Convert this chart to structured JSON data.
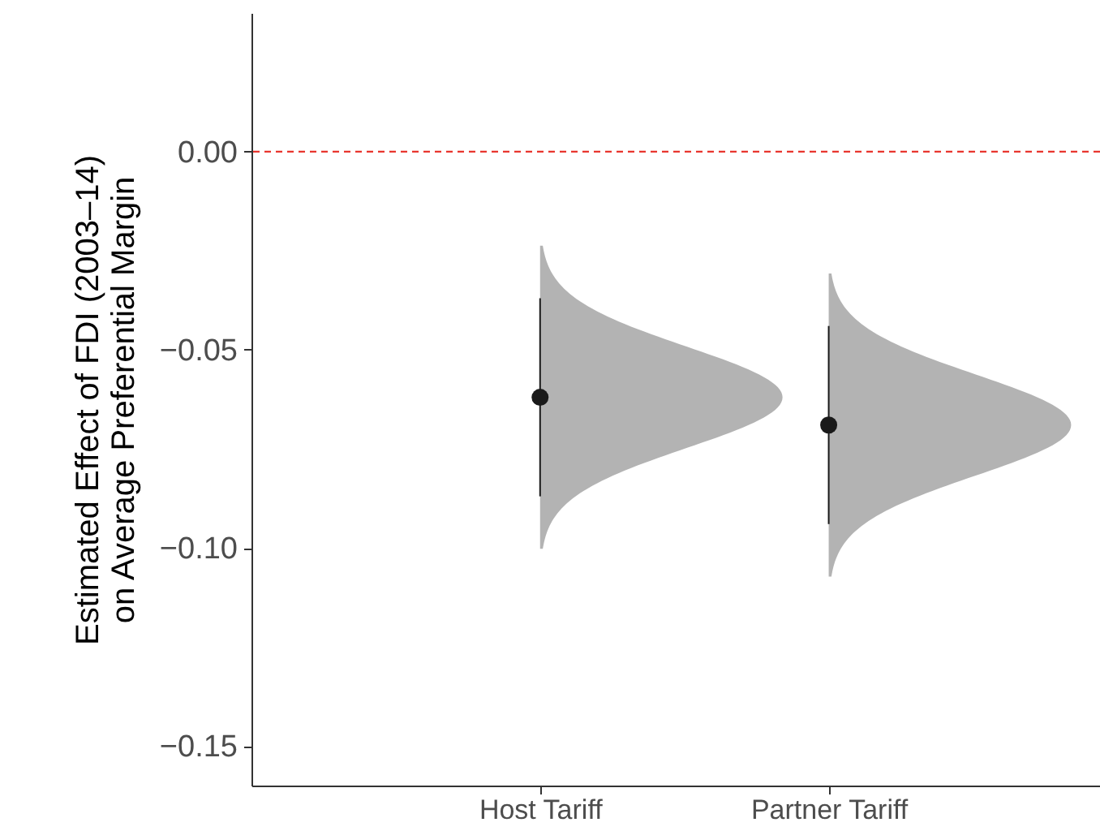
{
  "chart_data": {
    "type": "scatter",
    "ylabel": "Estimated Effect of FDI (2003–14)\non Average Preferential Margin",
    "categories": [
      "Host Tariff",
      "Partner Tariff"
    ],
    "values": [
      -0.062,
      -0.069
    ],
    "errors": [
      [
        -0.087,
        -0.037
      ],
      [
        -0.094,
        -0.044
      ]
    ],
    "color": "#1a1a1a",
    "marker": "circle",
    "grid": false,
    "ylim": [
      -0.16,
      0.035
    ],
    "yticks": [
      {
        "value": 0,
        "label": "0.00"
      },
      {
        "value": -0.05,
        "label": "−0.05"
      },
      {
        "value": -0.1,
        "label": "−0.10"
      },
      {
        "value": -0.15,
        "label": "−0.15"
      }
    ],
    "ref_lines": [
      {
        "axis": "y",
        "value": 0,
        "color": "#e8352e",
        "line_style": "dashed"
      }
    ]
  }
}
